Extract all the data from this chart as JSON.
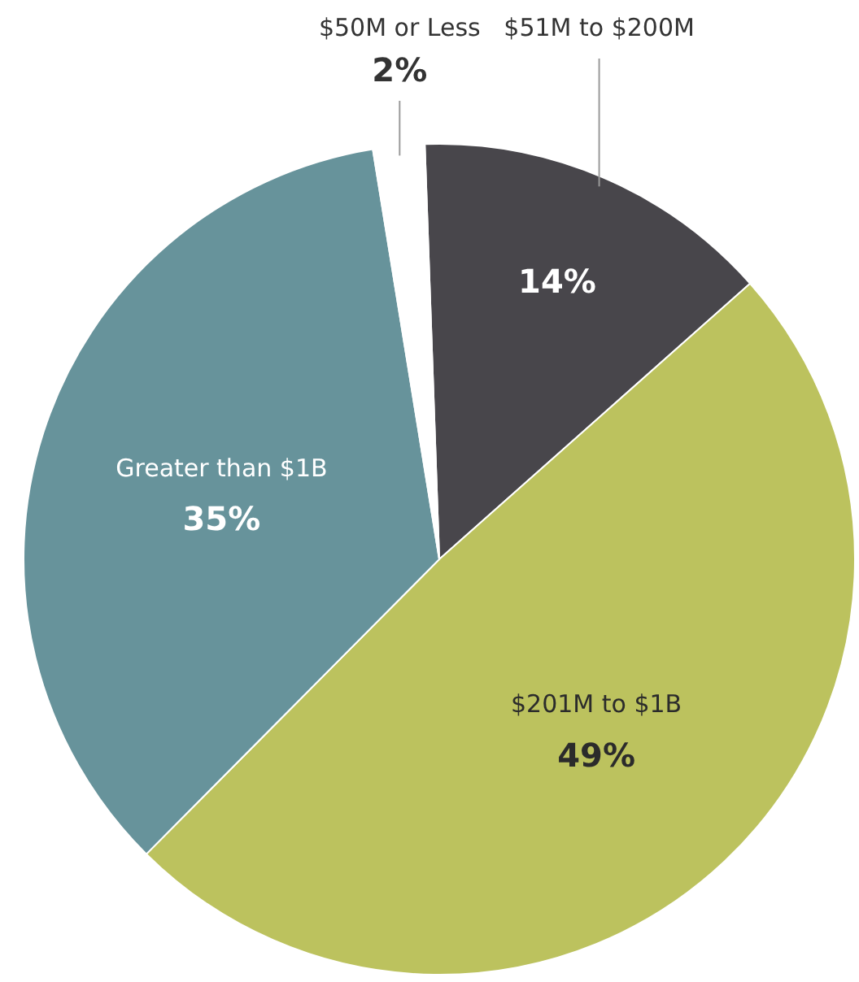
{
  "chart_data": {
    "type": "pie",
    "categories": [
      "$51M to $200M",
      "$201M to $1B",
      "Greater than $1B",
      "$50M or Less"
    ],
    "values": [
      14,
      49,
      35,
      2
    ],
    "value_labels": [
      "14%",
      "49%",
      "35%",
      "2%"
    ],
    "colors": [
      "#48464b",
      "#bcc25e",
      "#67939b",
      "#ffffff"
    ],
    "legend": false
  }
}
